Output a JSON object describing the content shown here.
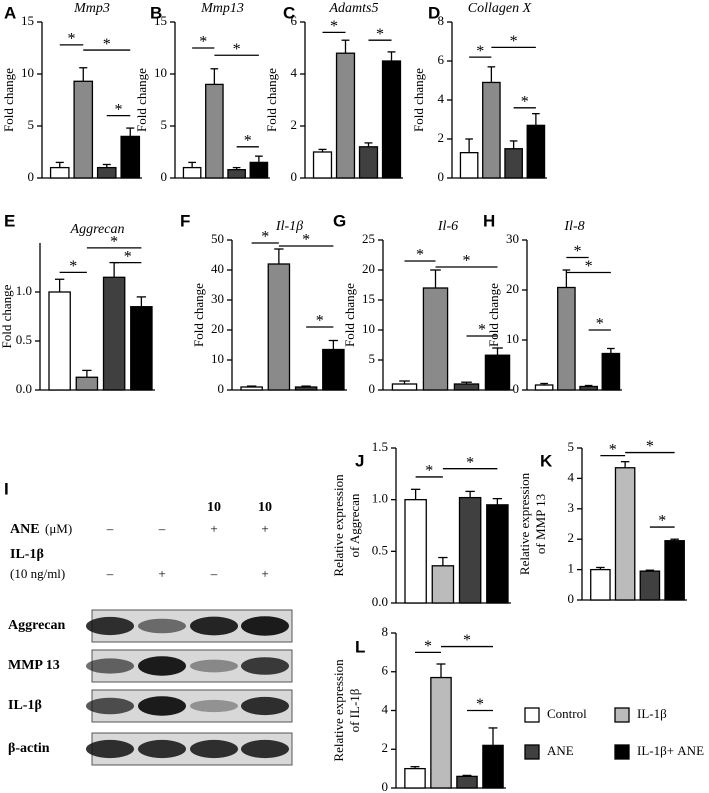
{
  "chart_data": [
    {
      "type": "bar",
      "label": "A",
      "title": "Mmp3",
      "ylabel": "Fold change",
      "ylim": [
        0,
        15
      ],
      "yticks": [
        0,
        5,
        10,
        15
      ],
      "values": [
        1,
        9.3,
        1,
        4
      ],
      "errors": [
        0.5,
        1.3,
        0.3,
        0.8
      ],
      "colors": [
        "#ffffff",
        "#8a8a8a",
        "#404040",
        "#000000"
      ],
      "annotations": [
        {
          "text": "*",
          "from": 0,
          "to": 1,
          "y": 12.8
        },
        {
          "text": "*",
          "from": 1,
          "to": 3,
          "y": 12.3
        },
        {
          "text": "*",
          "from": 2,
          "to": 3,
          "y": 6
        }
      ]
    },
    {
      "type": "bar",
      "label": "B",
      "title": "Mmp13",
      "ylabel": "Fold change",
      "ylim": [
        0,
        15
      ],
      "yticks": [
        0,
        5,
        10,
        15
      ],
      "values": [
        1,
        9,
        0.8,
        1.5
      ],
      "errors": [
        0.5,
        1.5,
        0.2,
        0.6
      ],
      "colors": [
        "#ffffff",
        "#8a8a8a",
        "#404040",
        "#000000"
      ],
      "annotations": [
        {
          "text": "*",
          "from": 0,
          "to": 1,
          "y": 12.5
        },
        {
          "text": "*",
          "from": 1,
          "to": 3,
          "y": 11.8
        },
        {
          "text": "*",
          "from": 2,
          "to": 3,
          "y": 3
        }
      ]
    },
    {
      "type": "bar",
      "label": "C",
      "title": "Adamts5",
      "ylabel": "Fold change",
      "ylim": [
        0,
        6
      ],
      "yticks": [
        0,
        2,
        4,
        6
      ],
      "values": [
        1,
        4.8,
        1.2,
        4.5
      ],
      "errors": [
        0.1,
        0.5,
        0.15,
        0.35
      ],
      "colors": [
        "#ffffff",
        "#8a8a8a",
        "#404040",
        "#000000"
      ],
      "annotations": [
        {
          "text": "*",
          "from": 0,
          "to": 1,
          "y": 5.6
        },
        {
          "text": "*",
          "from": 2,
          "to": 3,
          "y": 5.3
        }
      ]
    },
    {
      "type": "bar",
      "label": "D",
      "title": "Collagen X",
      "ylabel": "Fold change",
      "ylim": [
        0,
        8
      ],
      "yticks": [
        0,
        2,
        4,
        6,
        8
      ],
      "values": [
        1.3,
        4.9,
        1.5,
        2.7
      ],
      "errors": [
        0.7,
        0.8,
        0.4,
        0.6
      ],
      "colors": [
        "#ffffff",
        "#8a8a8a",
        "#404040",
        "#000000"
      ],
      "annotations": [
        {
          "text": "*",
          "from": 0,
          "to": 1,
          "y": 6.2
        },
        {
          "text": "*",
          "from": 1,
          "to": 3,
          "y": 6.7
        },
        {
          "text": "*",
          "from": 2,
          "to": 3,
          "y": 3.6
        }
      ]
    },
    {
      "type": "bar",
      "label": "E",
      "title": "Aggrecan",
      "ylabel": "Fold change",
      "ylim": [
        0,
        1.5
      ],
      "yticks": [
        {
          "value": 0,
          "label": "0.0"
        },
        {
          "value": 0.5,
          "label": "0.5"
        },
        {
          "value": 1,
          "label": "1.0"
        }
      ],
      "values": [
        1,
        0.13,
        1.15,
        0.85
      ],
      "errors": [
        0.13,
        0.07,
        0.15,
        0.1
      ],
      "colors": [
        "#ffffff",
        "#8a8a8a",
        "#404040",
        "#000000"
      ],
      "annotations": [
        {
          "text": "*",
          "from": 0,
          "to": 1,
          "y": 1.2
        },
        {
          "text": "*",
          "from": 1,
          "to": 3,
          "y": 1.45
        },
        {
          "text": "*",
          "from": 2,
          "to": 3,
          "y": 1.3
        }
      ]
    },
    {
      "type": "bar",
      "label": "F",
      "title": "Il-1β",
      "ylabel": "Fold change",
      "ylim": [
        0,
        50
      ],
      "yticks": [
        0,
        10,
        20,
        30,
        40,
        50
      ],
      "values": [
        1,
        42,
        1,
        13.5
      ],
      "errors": [
        0.3,
        5,
        0.3,
        3
      ],
      "colors": [
        "#ffffff",
        "#8a8a8a",
        "#404040",
        "#000000"
      ],
      "annotations": [
        {
          "text": "*",
          "from": 0,
          "to": 1,
          "y": 49
        },
        {
          "text": "*",
          "from": 1,
          "to": 3,
          "y": 48
        },
        {
          "text": "*",
          "from": 2,
          "to": 3,
          "y": 21
        }
      ]
    },
    {
      "type": "bar",
      "label": "G",
      "title": "Il-6",
      "ylabel": "Fold change",
      "ylim": [
        0,
        25
      ],
      "yticks": [
        0,
        5,
        10,
        15,
        20,
        25
      ],
      "values": [
        1,
        17,
        1,
        5.8
      ],
      "errors": [
        0.5,
        3,
        0.3,
        1.2
      ],
      "colors": [
        "#ffffff",
        "#8a8a8a",
        "#404040",
        "#000000"
      ],
      "annotations": [
        {
          "text": "*",
          "from": 0,
          "to": 1,
          "y": 21.5
        },
        {
          "text": "*",
          "from": 1,
          "to": 3,
          "y": 20.5
        },
        {
          "text": "*",
          "from": 2,
          "to": 3,
          "y": 9
        }
      ]
    },
    {
      "type": "bar",
      "label": "H",
      "title": "Il-8",
      "ylabel": "Fold change",
      "ylim": [
        0,
        30
      ],
      "yticks": [
        0,
        10,
        20,
        30
      ],
      "values": [
        1,
        20.5,
        0.7,
        7.3
      ],
      "errors": [
        0.3,
        3.5,
        0.2,
        1
      ],
      "colors": [
        "#ffffff",
        "#8a8a8a",
        "#404040",
        "#000000"
      ],
      "annotations": [
        {
          "text": "*",
          "from": 1,
          "to": 2,
          "y": 26.5
        },
        {
          "text": "*",
          "from": 1,
          "to": 3,
          "y": 23.5
        },
        {
          "text": "*",
          "from": 2,
          "to": 3,
          "y": 12
        }
      ]
    },
    {
      "type": "bar",
      "label": "J",
      "ylabel": [
        "Relative expression",
        "of  Aggrecan"
      ],
      "ylim": [
        0,
        1.5
      ],
      "yticks": [
        {
          "value": 0,
          "label": "0.0"
        },
        {
          "value": 0.5,
          "label": "0.5"
        },
        {
          "value": 1,
          "label": "1.0"
        },
        {
          "value": 1.5,
          "label": "1.5"
        }
      ],
      "values": [
        1,
        0.36,
        1.02,
        0.95
      ],
      "errors": [
        0.1,
        0.08,
        0.06,
        0.06
      ],
      "colors": [
        "#ffffff",
        "#bbbbbb",
        "#404040",
        "#000000"
      ],
      "annotations": [
        {
          "text": "*",
          "from": 0,
          "to": 1,
          "y": 1.22
        },
        {
          "text": "*",
          "from": 1,
          "to": 3,
          "y": 1.3
        }
      ]
    },
    {
      "type": "bar",
      "label": "K",
      "ylabel": [
        "Relative expression",
        "of  MMP 13"
      ],
      "ylim": [
        0,
        5
      ],
      "yticks": [
        0,
        1,
        2,
        3,
        4,
        5
      ],
      "values": [
        1,
        4.35,
        0.95,
        1.95
      ],
      "errors": [
        0.07,
        0.2,
        0.03,
        0.05
      ],
      "colors": [
        "#ffffff",
        "#bbbbbb",
        "#404040",
        "#000000"
      ],
      "annotations": [
        {
          "text": "*",
          "from": 0,
          "to": 1,
          "y": 4.75
        },
        {
          "text": "*",
          "from": 1,
          "to": 3,
          "y": 4.85
        },
        {
          "text": "*",
          "from": 2,
          "to": 3,
          "y": 2.4
        }
      ]
    },
    {
      "type": "bar",
      "label": "L",
      "ylabel": [
        "Relative expression",
        "of  IL-1β"
      ],
      "ylim": [
        0,
        8
      ],
      "yticks": [
        0,
        2,
        4,
        6,
        8
      ],
      "values": [
        1,
        5.7,
        0.6,
        2.2
      ],
      "errors": [
        0.1,
        0.7,
        0.05,
        0.9
      ],
      "colors": [
        "#ffffff",
        "#bbbbbb",
        "#404040",
        "#000000"
      ],
      "annotations": [
        {
          "text": "*",
          "from": 0,
          "to": 1,
          "y": 7
        },
        {
          "text": "*",
          "from": 1,
          "to": 3,
          "y": 7.3
        },
        {
          "text": "*",
          "from": 2,
          "to": 3,
          "y": 4
        }
      ]
    }
  ],
  "legend": [
    {
      "name": "Control",
      "color": "#ffffff"
    },
    {
      "name": "IL-1β",
      "color": "#bbbbbb"
    },
    {
      "name": "ANE",
      "color": "#404040"
    },
    {
      "name": "IL-1β+ ANE",
      "color": "#000000"
    }
  ],
  "blot": {
    "label": "I",
    "conditions": [
      {
        "name": "ANE",
        "unit": "(μM)",
        "dose": [
          null,
          null,
          10,
          10
        ],
        "signs": [
          "–",
          "–",
          "+",
          "+"
        ]
      },
      {
        "name": "IL-1β",
        "unit": "(10 ng/ml)",
        "signs": [
          "–",
          "+",
          "–",
          "+"
        ]
      }
    ],
    "rows": [
      "Aggrecan",
      "MMP 13",
      "IL-1β",
      "β-actin"
    ]
  }
}
